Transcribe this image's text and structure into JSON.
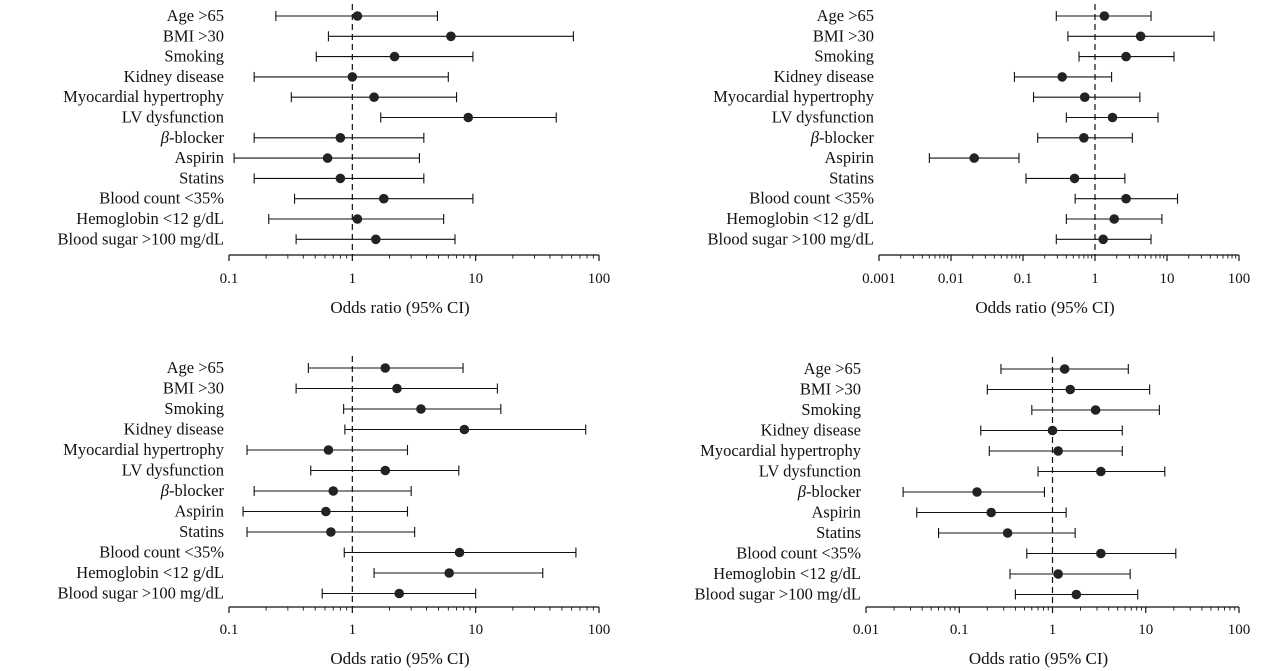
{
  "chart_data": [
    {
      "type": "scatter",
      "subtype": "forest",
      "title": "",
      "xlabel": "Odds ratio (95% CI)",
      "ylabel": "",
      "xscale": "log",
      "xlim": [
        0.1,
        100
      ],
      "xticks": [
        "0.1",
        "1",
        "10",
        "100"
      ],
      "reference_line": 1,
      "categories": [
        "Age >65",
        "BMI >30",
        "Smoking",
        "Kidney disease",
        "Myocardial hypertrophy",
        "LV dysfunction",
        "β-blocker",
        "Aspirin",
        "Statins",
        "Blood count <35%",
        "Hemoglobin <12 g/dL",
        "Blood sugar >100 mg/dL"
      ],
      "or": [
        1.1,
        6.3,
        2.2,
        1.0,
        1.5,
        8.7,
        0.8,
        0.63,
        0.8,
        1.8,
        1.1,
        1.55
      ],
      "lower": [
        0.24,
        0.64,
        0.51,
        0.16,
        0.32,
        1.7,
        0.16,
        0.11,
        0.16,
        0.34,
        0.21,
        0.35
      ],
      "upper": [
        4.9,
        62,
        9.5,
        6.0,
        7.0,
        45,
        3.8,
        3.5,
        3.8,
        9.5,
        5.5,
        6.8
      ]
    },
    {
      "type": "scatter",
      "subtype": "forest",
      "title": "",
      "xlabel": "Odds ratio (95% CI)",
      "ylabel": "",
      "xscale": "log",
      "xlim": [
        0.001,
        100
      ],
      "xticks": [
        "0.001",
        "0.01",
        "0.1",
        "1",
        "10",
        "100"
      ],
      "reference_line": 1,
      "categories": [
        "Age >65",
        "BMI >30",
        "Smoking",
        "Kidney disease",
        "Myocardial hypertrophy",
        "LV dysfunction",
        "β-blocker",
        "Aspirin",
        "Statins",
        "Blood count <35%",
        "Hemoglobin <12 g/dL",
        "Blood sugar >100 mg/dL"
      ],
      "or": [
        1.35,
        4.3,
        2.7,
        0.35,
        0.72,
        1.75,
        0.7,
        0.021,
        0.52,
        2.7,
        1.85,
        1.3
      ],
      "lower": [
        0.29,
        0.42,
        0.6,
        0.076,
        0.14,
        0.4,
        0.16,
        0.005,
        0.11,
        0.53,
        0.4,
        0.29
      ],
      "upper": [
        6.0,
        45,
        12.5,
        1.7,
        4.2,
        7.5,
        3.3,
        0.088,
        2.6,
        14,
        8.5,
        6.0
      ]
    },
    {
      "type": "scatter",
      "subtype": "forest",
      "title": "",
      "xlabel": "Odds ratio (95% CI)",
      "ylabel": "",
      "xscale": "log",
      "xlim": [
        0.1,
        100
      ],
      "xticks": [
        "0.1",
        "1",
        "10",
        "100"
      ],
      "reference_line": 1,
      "categories": [
        "Age >65",
        "BMI >30",
        "Smoking",
        "Kidney disease",
        "Myocardial hypertrophy",
        "LV dysfunction",
        "β-blocker",
        "Aspirin",
        "Statins",
        "Blood count <35%",
        "Hemoglobin <12 g/dL",
        "Blood sugar >100 mg/dL"
      ],
      "or": [
        1.85,
        2.3,
        3.6,
        8.1,
        0.64,
        1.85,
        0.7,
        0.61,
        0.67,
        7.4,
        6.1,
        2.4
      ],
      "lower": [
        0.44,
        0.35,
        0.85,
        0.87,
        0.14,
        0.46,
        0.16,
        0.13,
        0.14,
        0.86,
        1.5,
        0.57
      ],
      "upper": [
        7.9,
        15,
        16,
        78,
        2.8,
        7.3,
        3.0,
        2.8,
        3.2,
        65,
        35,
        10
      ]
    },
    {
      "type": "scatter",
      "subtype": "forest",
      "title": "",
      "xlabel": "Odds ratio (95% CI)",
      "ylabel": "",
      "xscale": "log",
      "xlim": [
        0.01,
        100
      ],
      "xticks": [
        "0.01",
        "0.1",
        "1",
        "10",
        "100"
      ],
      "reference_line": 1,
      "categories": [
        "Age >65",
        "BMI >30",
        "Smoking",
        "Kidney disease",
        "Myocardial hypertrophy",
        "LV dysfunction",
        "β-blocker",
        "Aspirin",
        "Statins",
        "Blood count <35%",
        "Hemoglobin <12 g/dL",
        "Blood sugar >100 mg/dL"
      ],
      "or": [
        1.35,
        1.55,
        2.9,
        1.0,
        1.15,
        3.3,
        0.155,
        0.22,
        0.33,
        3.3,
        1.15,
        1.8
      ],
      "lower": [
        0.28,
        0.2,
        0.6,
        0.17,
        0.21,
        0.7,
        0.025,
        0.035,
        0.06,
        0.53,
        0.35,
        0.4
      ],
      "upper": [
        6.5,
        11,
        14,
        5.6,
        5.6,
        16,
        0.82,
        1.4,
        1.75,
        21,
        6.8,
        8.2
      ]
    }
  ]
}
